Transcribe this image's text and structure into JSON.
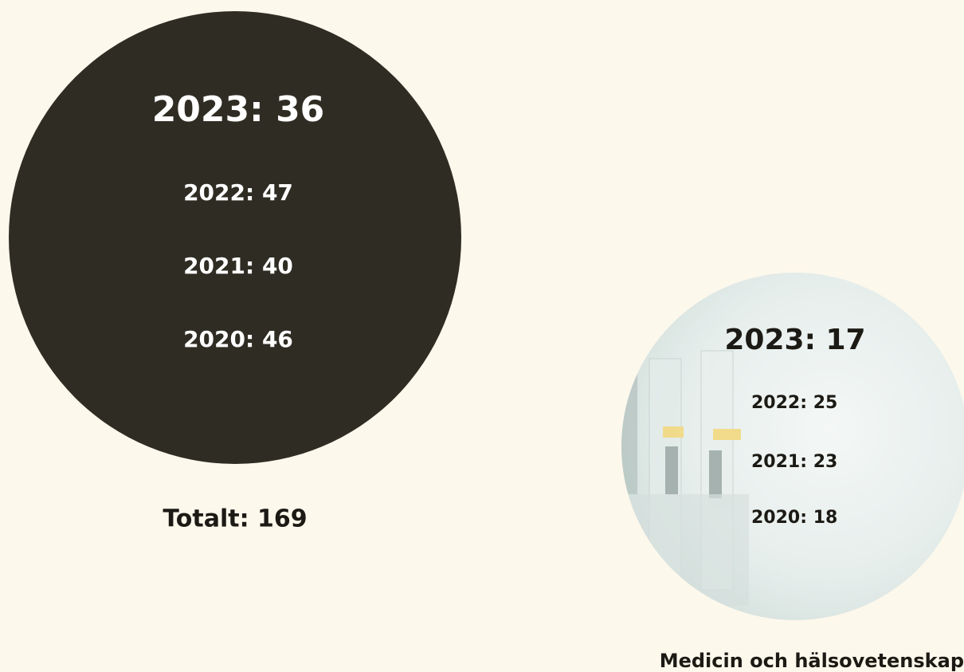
{
  "cards": [
    {
      "lines": [
        "2023: 36",
        "2022: 47",
        "2021: 40",
        "2020: 46"
      ],
      "total": "Totalt: 169"
    },
    {
      "lines": [
        "2023: 17",
        "2022: 25",
        "2021: 23",
        "2020: 18"
      ],
      "label": "Medicin och hälsovetenskap"
    }
  ]
}
